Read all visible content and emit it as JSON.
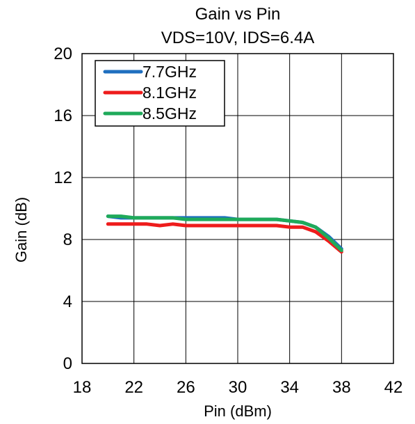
{
  "chart_data": {
    "type": "line",
    "title": "Gain vs Pin",
    "subtitle": "VDS=10V, IDS=6.4A",
    "xlabel": "Pin (dBm)",
    "ylabel": "Gain (dB)",
    "xlim": [
      18,
      42
    ],
    "ylim": [
      0,
      20
    ],
    "xticks": [
      "18",
      "22",
      "26",
      "30",
      "34",
      "38",
      "42"
    ],
    "yticks": [
      "0",
      "4",
      "8",
      "12",
      "16",
      "20"
    ],
    "grid": true,
    "legend_position": "top-left",
    "series": [
      {
        "name": "7.7GHz",
        "color": "#1f6fbf",
        "x": [
          20,
          21,
          22,
          23,
          24,
          25,
          26,
          27,
          28,
          29,
          30,
          31,
          32,
          33,
          34,
          35,
          36,
          37,
          38
        ],
        "y": [
          9.5,
          9.4,
          9.4,
          9.4,
          9.4,
          9.4,
          9.4,
          9.4,
          9.4,
          9.4,
          9.3,
          9.3,
          9.3,
          9.3,
          9.2,
          9.1,
          8.8,
          8.2,
          7.4
        ]
      },
      {
        "name": "8.1GHz",
        "color": "#ee1c1c",
        "x": [
          20,
          21,
          22,
          23,
          24,
          25,
          26,
          27,
          28,
          29,
          30,
          31,
          32,
          33,
          34,
          35,
          36,
          37,
          38
        ],
        "y": [
          9.0,
          9.0,
          9.0,
          9.0,
          8.9,
          9.0,
          8.9,
          8.9,
          8.9,
          8.9,
          8.9,
          8.9,
          8.9,
          8.9,
          8.8,
          8.8,
          8.5,
          7.9,
          7.2
        ]
      },
      {
        "name": "8.5GHz",
        "color": "#1faa5a",
        "x": [
          20,
          21,
          22,
          23,
          24,
          25,
          26,
          27,
          28,
          29,
          30,
          31,
          32,
          33,
          34,
          35,
          36,
          37,
          38
        ],
        "y": [
          9.5,
          9.5,
          9.4,
          9.4,
          9.4,
          9.4,
          9.3,
          9.3,
          9.3,
          9.3,
          9.3,
          9.3,
          9.3,
          9.3,
          9.2,
          9.1,
          8.8,
          8.1,
          7.3
        ]
      }
    ]
  }
}
